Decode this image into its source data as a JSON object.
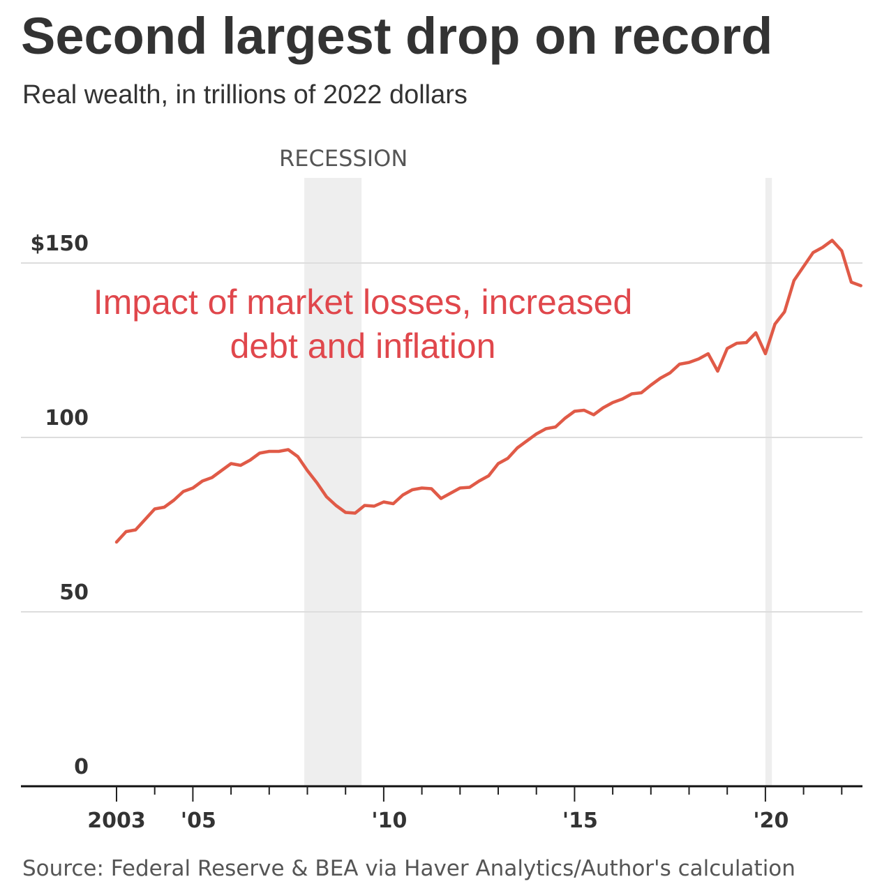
{
  "title": "Second largest drop on record",
  "subtitle": "Real wealth, in trillions of 2022 dollars",
  "annotation": {
    "line1": "Impact of market losses, increased",
    "line2": "debt and inflation"
  },
  "source": "Source: Federal Reserve & BEA via Haver Analytics/Author's calculation",
  "colors": {
    "line": "#e05a47",
    "annotation": "#e0474c",
    "recession_band": "#eeeeee",
    "text": "#333333"
  },
  "chart_data": {
    "type": "line",
    "title": "Second largest drop on record",
    "subtitle": "Real wealth, in trillions of 2022 dollars",
    "xlabel": "",
    "ylabel": "",
    "xlim": [
      2000.5,
      2022.75
    ],
    "ylim": [
      0,
      170
    ],
    "grid": true,
    "y_ticks": [
      {
        "value": 0,
        "label": "0"
      },
      {
        "value": 50,
        "label": "50"
      },
      {
        "value": 100,
        "label": "100"
      },
      {
        "value": 150,
        "label": "$150"
      }
    ],
    "x_ticks": [
      {
        "value": 2003,
        "label": "2003"
      },
      {
        "value": 2005,
        "label": "'05"
      },
      {
        "value": 2010,
        "label": "'10"
      },
      {
        "value": 2015,
        "label": "'15"
      },
      {
        "value": 2020,
        "label": "'20"
      }
    ],
    "minor_x_ticks": [
      2004,
      2006,
      2007,
      2008,
      2009,
      2011,
      2012,
      2013,
      2014,
      2016,
      2017,
      2018,
      2019,
      2021,
      2022
    ],
    "recessions": [
      {
        "start": 2007.92,
        "end": 2009.42,
        "label": "RECESSION"
      },
      {
        "start": 2020.0,
        "end": 2020.17,
        "label": ""
      }
    ],
    "series": [
      {
        "x": [
          2003.0,
          2003.25,
          2003.5,
          2003.75,
          2004.0,
          2004.25,
          2004.5,
          2004.75,
          2005.0,
          2005.25,
          2005.5,
          2005.75,
          2006.0,
          2006.25,
          2006.5,
          2006.75,
          2007.0,
          2007.25,
          2007.5,
          2007.75,
          2008.0,
          2008.25,
          2008.5,
          2008.75,
          2009.0,
          2009.25,
          2009.5,
          2009.75,
          2010.0,
          2010.25,
          2010.5,
          2010.75,
          2011.0,
          2011.25,
          2011.5,
          2011.75,
          2012.0,
          2012.25,
          2012.5,
          2012.75,
          2013.0,
          2013.25,
          2013.5,
          2013.75,
          2014.0,
          2014.25,
          2014.5,
          2014.75,
          2015.0,
          2015.25,
          2015.5,
          2015.75,
          2016.0,
          2016.25,
          2016.5,
          2016.75,
          2017.0,
          2017.25,
          2017.5,
          2017.75,
          2018.0,
          2018.25,
          2018.5,
          2018.75,
          2019.0,
          2019.25,
          2019.5,
          2019.75,
          2020.0,
          2020.25,
          2020.5,
          2020.75,
          2021.0,
          2021.25,
          2021.5,
          2021.75,
          2022.0,
          2022.25,
          2022.5
        ],
        "values": [
          70.0,
          73.0,
          73.5,
          76.5,
          79.5,
          80.0,
          82.0,
          84.5,
          85.5,
          87.5,
          88.5,
          90.5,
          92.5,
          92.0,
          93.5,
          95.5,
          96.0,
          96.0,
          96.5,
          94.5,
          90.5,
          87.0,
          83.0,
          80.5,
          78.5,
          78.3,
          80.5,
          80.3,
          81.5,
          81.0,
          83.5,
          85.0,
          85.5,
          85.3,
          82.5,
          84.0,
          85.5,
          85.7,
          87.5,
          89.0,
          92.5,
          94.0,
          97.0,
          99.0,
          101.0,
          102.5,
          103.0,
          105.5,
          107.5,
          107.8,
          106.5,
          108.5,
          110.0,
          111.0,
          112.5,
          112.8,
          115.0,
          117.0,
          118.5,
          121.0,
          121.5,
          122.5,
          124.0,
          119.0,
          125.5,
          127.0,
          127.2,
          130.0,
          124.0,
          132.5,
          136.0,
          145.0,
          149.0,
          153.0,
          154.5,
          156.5,
          153.5,
          144.5,
          143.5
        ]
      }
    ]
  }
}
